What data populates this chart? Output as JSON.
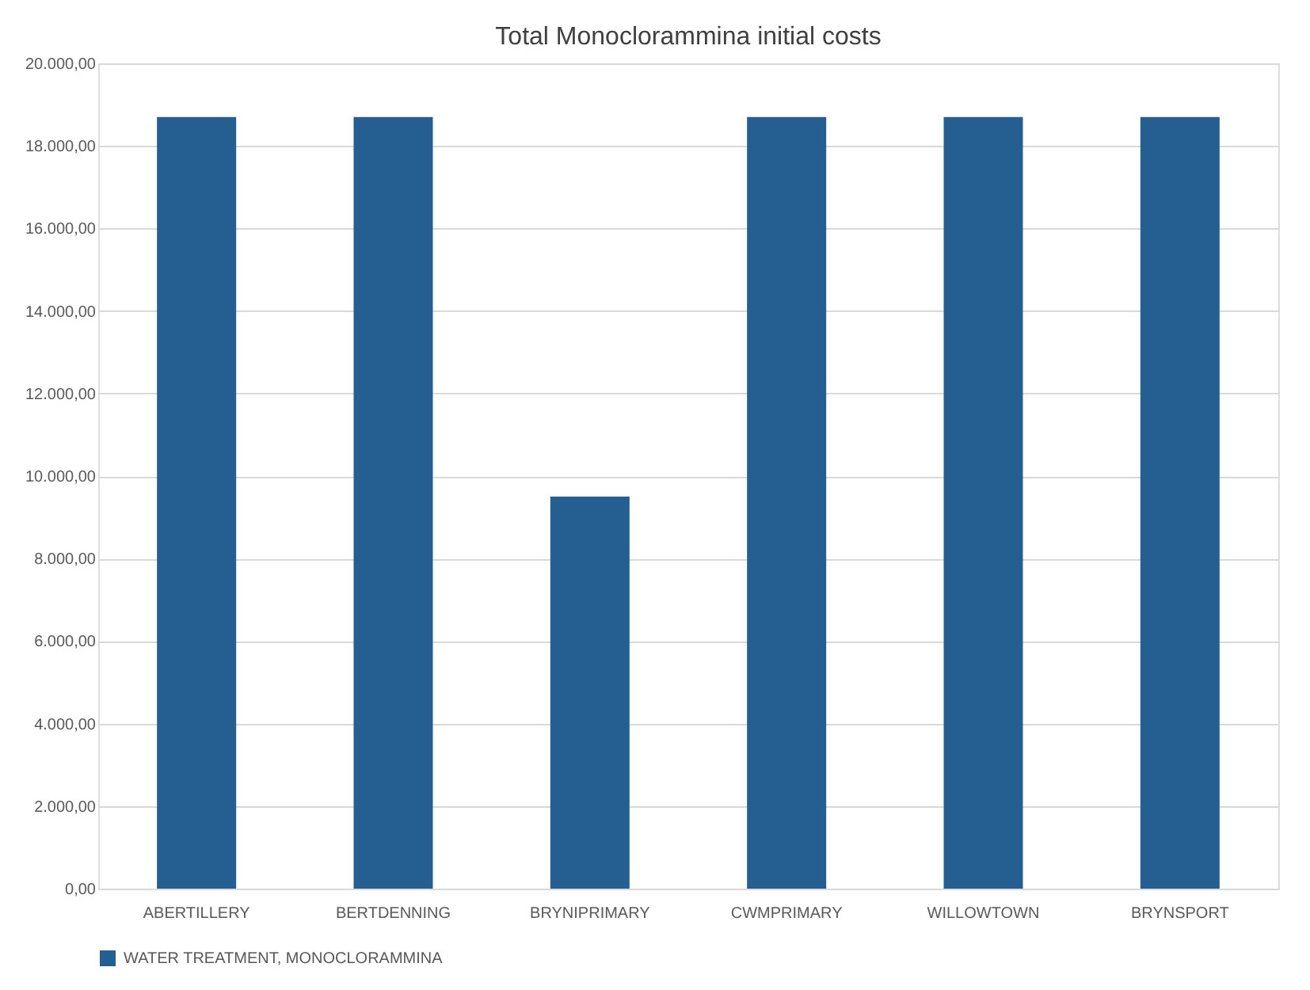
{
  "chart_data": {
    "type": "bar",
    "title": "Total Monoclorammina initial costs",
    "categories": [
      "ABERTILLERY",
      "BERTDENNING",
      "BRYNIPRIMARY",
      "CWMPRIMARY",
      "WILLOWTOWN",
      "BRYNSPORT"
    ],
    "series": [
      {
        "name": "WATER TREATMENT, MONOCLORAMMINA",
        "color": "#255e91",
        "values": [
          18700,
          18700,
          9500,
          18700,
          18700,
          18700
        ]
      }
    ],
    "ylim": [
      0,
      20000
    ],
    "yticks": [
      {
        "value": 0,
        "label": "0,00"
      },
      {
        "value": 2000,
        "label": "2.000,00"
      },
      {
        "value": 4000,
        "label": "4.000,00"
      },
      {
        "value": 6000,
        "label": "6.000,00"
      },
      {
        "value": 8000,
        "label": "8.000,00"
      },
      {
        "value": 10000,
        "label": "10.000,00"
      },
      {
        "value": 12000,
        "label": "12.000,00"
      },
      {
        "value": 14000,
        "label": "14.000,00"
      },
      {
        "value": 16000,
        "label": "16.000,00"
      },
      {
        "value": 18000,
        "label": "18.000,00"
      },
      {
        "value": 20000,
        "label": "20.000,00"
      }
    ],
    "grid": "y",
    "legend": "bottom"
  }
}
